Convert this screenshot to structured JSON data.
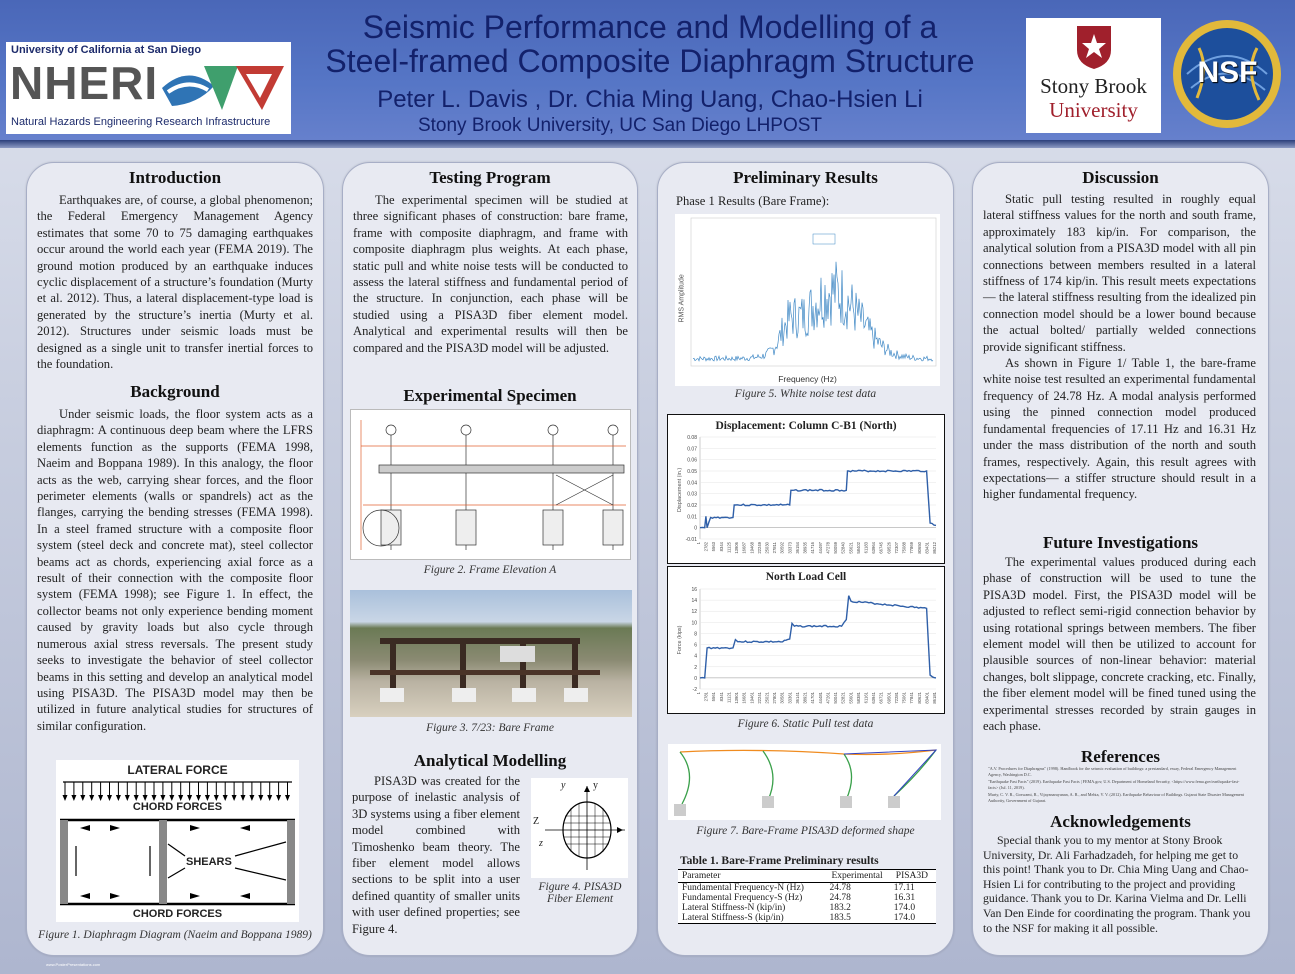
{
  "header": {
    "title_line1": "Seismic Performance and Modelling of a",
    "title_line2": "Steel-framed Composite Diaphragm Structure",
    "authors": "Peter L. Davis , Dr. Chia Ming Uang, Chao-Hsien Li",
    "affiliation": "Stony Brook University, UC San Diego LHPOST"
  },
  "logos": {
    "ucsd_line": "University of California at San Diego",
    "nheri": "NHERI",
    "nheri_full": "Natural Hazards Engineering Research Infrastructure",
    "sbu_line1": "Stony Brook",
    "sbu_line2": "University",
    "nsf": "NSF"
  },
  "introduction": {
    "heading": "Introduction",
    "text": "Earthquakes are, of course, a global phenomenon; the Federal Emergency Management Agency estimates that some 70 to 75 damaging earthquakes occur around the world each year (FEMA 2019). The ground motion produced by an earthquake induces cyclic displacement of a structure’s foundation (Murty et al. 2012). Thus, a lateral displacement-type load is generated by the structure’s inertia (Murty et al. 2012). Structures under seismic loads must be designed as a single unit to transfer inertial forces to the foundation."
  },
  "background": {
    "heading": "Background",
    "text": "Under seismic loads, the floor system acts as a diaphragm: A continuous deep beam where the LFRS elements function as the supports (FEMA 1998, Naeim and Boppana 1989). In this analogy, the floor acts as the web, carrying shear forces, and the floor perimeter elements (walls or spandrels) act as the flanges, carrying the bending stresses (FEMA 1998). In a steel framed structure with a composite floor system (steel deck and concrete mat), steel collector beams act as chords, experiencing axial force as a result of their connection with the composite floor system (FEMA 1998); see Figure 1. In effect, the collector beams not only experience bending moment caused by gravity loads but also cycle through numerous axial stress reversals. The present study seeks to investigate the behavior of steel collector beams in this setting and develop an analytical model using PISA3D. The PISA3D model may then be utilized in future analytical studies for structures of similar configuration.",
    "fig1_lateral": "LATERAL FORCE",
    "fig1_chord_top": "CHORD FORCES",
    "fig1_shears": "SHEARS",
    "fig1_chord_bottom": "CHORD FORCES",
    "fig1_caption": "Figure 1. Diaphragm Diagram (Naeim and Boppana 1989)",
    "footer_url": "www.PosterPresentations.com"
  },
  "testing": {
    "heading": "Testing Program",
    "text": "The experimental specimen will be studied at three significant phases of construction: bare frame, frame with composite diaphragm, and frame with composite diaphragm plus weights. At each phase, static pull and white noise tests will be conducted to assess the lateral stiffness and fundamental period of the structure. In conjunction, each phase will be studied using a PISA3D fiber element model. Analytical and experimental results will then be compared and the PISA3D model will be adjusted."
  },
  "specimen": {
    "heading": "Experimental Specimen",
    "fig2_caption": "Figure 2. Frame Elevation A",
    "fig3_caption": "Figure 3. 7/23: Bare Frame"
  },
  "analytical": {
    "heading": "Analytical Modelling",
    "text": "PISA3D was created for the purpose of inelastic analysis of 3D systems using a fiber element model combined with Timoshenko beam theory. The fiber element model allows sections to be split into a user defined quantity of smaller units with user defined properties; see Figure 4.",
    "fig4_caption_l1": "Figure 4. PISA3D",
    "fig4_caption_l2": "Fiber Element",
    "fig4_y": "y",
    "fig4_yfib": "y",
    "fig4_z": "z",
    "fig4_zfib": "Z"
  },
  "results": {
    "heading": "Preliminary Results",
    "phase_label": "Phase 1 Results (Bare Frame):",
    "fig5_xlabel": "Frequency (Hz)",
    "fig5_ylabel": "RMS Amplitude",
    "fig5_caption": "Figure 5. White noise test data",
    "fig6_caption": "Figure 6. Static Pull test data",
    "fig7_caption": "Figure 7. Bare-Frame PISA3D deformed shape",
    "table_title": "Table 1. Bare-Frame Preliminary results",
    "table_headers": [
      "Parameter",
      "Experimental",
      "PISA3D"
    ],
    "table_rows": [
      [
        "Fundamental Frequency-N (Hz)",
        "24.78",
        "17.11"
      ],
      [
        "Fundamental Frequency-S (Hz)",
        "24.78",
        "16.31"
      ],
      [
        "Lateral Stiffness-N (kip/in)",
        "183.2",
        "174.0"
      ],
      [
        "Lateral Stiffness-S (kip/in)",
        "183.5",
        "174.0"
      ]
    ]
  },
  "chart_data": [
    {
      "type": "line",
      "title": "Displacement: Column C-B1 (North)",
      "ylabel": "Displacement (in.)",
      "ylim": [
        -0.01,
        0.08
      ],
      "yticks": [
        "-0.01",
        "0",
        "0.01",
        "0.02",
        "0.03",
        "0.04",
        "0.05",
        "0.06",
        "0.07",
        "0.08"
      ],
      "xticks": [
        "1",
        "2782",
        "5563",
        "8344",
        "11125",
        "13906",
        "16687",
        "19468",
        "22249",
        "25030",
        "27811",
        "30592",
        "33373",
        "36154",
        "38935",
        "41716",
        "44497",
        "47278",
        "50059",
        "52840",
        "55621",
        "58402",
        "61183",
        "63964",
        "66745",
        "69526",
        "72307",
        "75088",
        "77869",
        "80650",
        "83431",
        "86212"
      ],
      "x": [
        0,
        0.02,
        0.025,
        0.03,
        0.045,
        0.1,
        0.14,
        0.145,
        0.15,
        0.35,
        0.38,
        0.385,
        0.39,
        0.6,
        0.62,
        0.625,
        0.63,
        0.96,
        0.975,
        1.0
      ],
      "values": [
        0,
        0,
        0.01,
        0.0,
        0.009,
        0.009,
        0.009,
        0.02,
        0.02,
        0.02,
        0.02,
        0.033,
        0.033,
        0.033,
        0.033,
        0.05,
        0.05,
        0.05,
        0.004,
        0.002
      ]
    },
    {
      "type": "line",
      "title": "North Load Cell",
      "ylabel": "Force (kips)",
      "ylim": [
        -2,
        16
      ],
      "yticks": [
        "-2",
        "0",
        "2",
        "4",
        "6",
        "8",
        "10",
        "12",
        "14",
        "16"
      ],
      "xticks": [
        "1",
        "2781",
        "5561",
        "8341",
        "11121",
        "13901",
        "16681",
        "19461",
        "22241",
        "25021",
        "27801",
        "30581",
        "33361",
        "36141",
        "38921",
        "41701",
        "44481",
        "47261",
        "50041",
        "52821",
        "55601",
        "58381",
        "61161",
        "63941",
        "66721",
        "69501",
        "72281",
        "75061",
        "77841",
        "80621",
        "83401",
        "86181"
      ],
      "x": [
        0,
        0.02,
        0.03,
        0.1,
        0.14,
        0.15,
        0.16,
        0.35,
        0.38,
        0.39,
        0.4,
        0.6,
        0.62,
        0.63,
        0.64,
        0.96,
        0.975,
        1.0
      ],
      "values": [
        0,
        0,
        5.4,
        5.4,
        5.4,
        6.9,
        6.5,
        6.5,
        7.0,
        9.8,
        9.3,
        9.3,
        10.5,
        14.8,
        13.8,
        12.5,
        0.5,
        0.0
      ]
    }
  ],
  "discussion": {
    "heading": "Discussion",
    "p1": "Static pull testing resulted in roughly equal lateral stiffness values for the north and south frame, approximately 183 kip/in. For comparison, the analytical solution from a PISA3D model with all pin connections between members resulted in a lateral stiffness of 174 kip/in. This result meets expectations— the lateral stiffness resulting from the idealized pin connection model should be a lower bound because the actual bolted/ partially welded connections provide significant stiffness.",
    "p2": "As shown in Figure 1/ Table 1, the bare-frame white noise test resulted an experimental fundamental frequency of 24.78 Hz. A modal analysis performed using the pinned connection model produced fundamental frequencies of 17.11 Hz and 16.31 Hz under the mass distribution of the north and south frames, respectively. Again, this result agrees with expectations— a stiffer structure should result in a higher fundamental frequency."
  },
  "future": {
    "heading": "Future Investigations",
    "text": "The experimental values produced during each phase of construction will be used to tune the PISA3D model. First, the PISA3D model will be adjusted to reflect semi-rigid connection behavior by using rotational springs between members. The fiber element model will then be utilized to account for plausible sources of non-linear behavior: material changes, bolt slippage, concrete cracking, etc. Finally, the fiber element model will be fined tuned using the experimental stresses recorded by strain gauges in each phase."
  },
  "references": {
    "heading": "References",
    "items": [
      "\"A.V. Procedures for Diaphragms\" (1998). Handbook for the seismic evaluation of buildings: a prestandard, essay, Federal Emergency Management Agency, Washington D.C.",
      "\"Earthquake Fast Facts\" (2019). Earthquake Fast Facts | FEMA.gov, U.S. Department of Homeland Security, <https://www.fema.gov/earthquake-fast-facts> (Jul. 11, 2019).",
      "Murty, C. V. R., Goswami, R., Vijayanarayanan, A. R., and Mehta, V. V. (2012). Earthquake Behaviour of Buildings. Gujarat State Disaster Management Authority, Government of Gujarat."
    ]
  },
  "acknowledgements": {
    "heading": "Acknowledgements",
    "text": "Special thank you to my mentor at Stony Brook University, Dr. Ali Farhadzadeh, for helping me get to this point! Thank you to Dr. Chia Ming Uang and Chao-Hsien Li for contributing to the project and providing guidance. Thank you to Dr. Karina Vielma and Dr. Lelli Van Den Einde for coordinating the program. Thank you to the NSF for making it all possible."
  },
  "colors": {
    "header_bg": "#5070c2",
    "title_text": "#13216b",
    "panel_bg": "#e8eaf2"
  }
}
